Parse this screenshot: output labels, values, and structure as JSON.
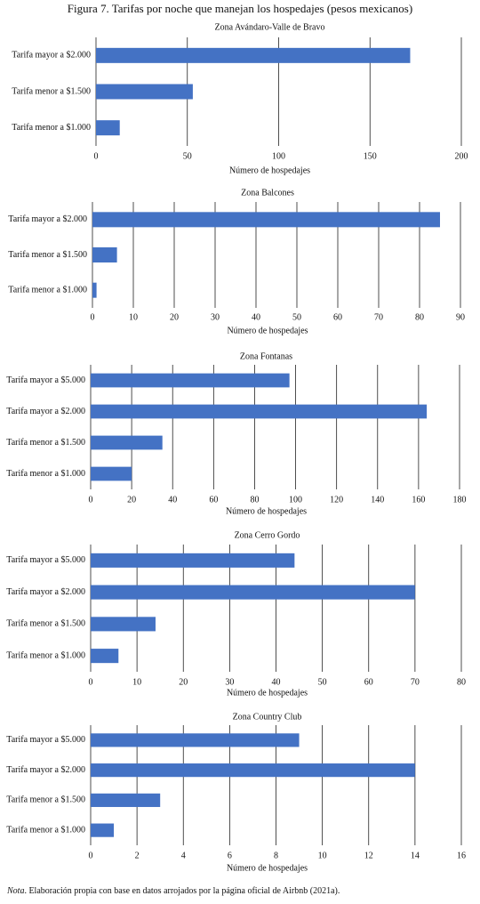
{
  "title": "Figura 7. Tarifas por noche que manejan los hospedajes (pesos mexicanos)",
  "note": {
    "label": "Nota",
    "text": ". Elaboración propia con base en datos arrojados por la página oficial de Airbnb (2021a)."
  },
  "chart_data": [
    {
      "type": "bar",
      "orientation": "horizontal",
      "title": "Zona Avándaro-Valle de Bravo",
      "categories": [
        "Tarifa mayor a $2.000",
        "Tarifa menor a $1.500",
        "Tarifa menor a $1.000"
      ],
      "values": [
        172,
        53,
        13
      ],
      "color": "#4472c4",
      "xlim": [
        0,
        200
      ],
      "xticks": [
        0,
        50,
        100,
        150,
        200
      ],
      "xlabel": "Número de hospedajes",
      "grid": true
    },
    {
      "type": "bar",
      "orientation": "horizontal",
      "title": "Zona Balcones",
      "categories": [
        "Tarifa mayor a $2.000",
        "Tarifa menor a $1.500",
        "Tarifa menor a $1.000"
      ],
      "values": [
        85,
        6,
        1
      ],
      "color": "#4472c4",
      "xlim": [
        0,
        90
      ],
      "xticks": [
        0,
        10,
        20,
        30,
        40,
        50,
        60,
        70,
        80,
        90
      ],
      "xlabel": "Número de hospedajes",
      "grid": true
    },
    {
      "type": "bar",
      "orientation": "horizontal",
      "title": "Zona Fontanas",
      "categories": [
        "Tarifa mayor a $5.000",
        "Tarifa mayor a $2.000",
        "Tarifa menor a $1.500",
        "Tarifa menor a $1.000"
      ],
      "values": [
        97,
        164,
        35,
        20
      ],
      "color": "#4472c4",
      "xlim": [
        0,
        180
      ],
      "xticks": [
        0,
        20,
        40,
        60,
        80,
        100,
        120,
        140,
        160,
        180
      ],
      "xlabel": "Número de hospedajes",
      "grid": true
    },
    {
      "type": "bar",
      "orientation": "horizontal",
      "title": "Zona Cerro Gordo",
      "categories": [
        "Tarifa mayor a $5.000",
        "Tarifa mayor a $2.000",
        "Tarifa menor a $1.500",
        "Tarifa menor a $1.000"
      ],
      "values": [
        44,
        70,
        14,
        6
      ],
      "color": "#4472c4",
      "xlim": [
        0,
        80
      ],
      "xticks": [
        0,
        10,
        20,
        30,
        40,
        50,
        60,
        70,
        80
      ],
      "xlabel": "Número de hospedajes",
      "grid": true
    },
    {
      "type": "bar",
      "orientation": "horizontal",
      "title": "Zona Country Club",
      "categories": [
        "Tarifa mayor a $5.000",
        "Tarifa mayor a $2.000",
        "Tarifa menor a $1.500",
        "Tarifa menor a $1.000"
      ],
      "values": [
        9,
        14,
        3,
        1
      ],
      "color": "#4472c4",
      "xlim": [
        0,
        16
      ],
      "xticks": [
        0,
        2,
        4,
        6,
        8,
        10,
        12,
        14,
        16
      ],
      "xlabel": "Número de hospedajes",
      "grid": true
    }
  ]
}
